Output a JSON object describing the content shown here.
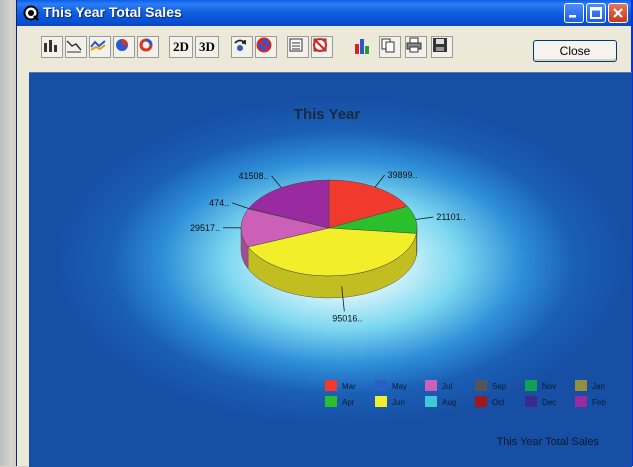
{
  "window": {
    "title": "This Year Total Sales",
    "close_label": "Close",
    "btn_2d": "2D",
    "btn_3d": "3D"
  },
  "toolbar_icons": [
    "bar-chart-icon",
    "line-chart-icon",
    "area-chart-icon",
    "pie-chart-icon",
    "donut-chart-icon",
    "2d-button",
    "3d-button",
    "rotate-icon",
    "no-labels-icon",
    "legend-icon",
    "remove-legend-icon",
    "color-bars-icon",
    "copy-icon",
    "print-icon",
    "save-icon"
  ],
  "chart_data": {
    "type": "pie",
    "title": "This Year",
    "footer": "This Year Total Sales",
    "slices": [
      {
        "label": "39899..",
        "series": "Mar",
        "value": 39899,
        "color": "#f03a2e"
      },
      {
        "label": "21101..",
        "series": "Apr",
        "value": 21101,
        "color": "#2bc02b"
      },
      {
        "label": "95016..",
        "series": "Jun",
        "value": 95016,
        "color": "#f2ee2a"
      },
      {
        "label": "29517..",
        "series": "Jul",
        "value": 29517,
        "color": "#cc5fb8"
      },
      {
        "label": "474..",
        "series": "Dec",
        "value": 474,
        "color": "#3a2a8a"
      },
      {
        "label": "41508..",
        "series": "Feb",
        "value": 41508,
        "color": "#9a2aa0"
      }
    ],
    "legend": [
      {
        "name": "Mar",
        "color": "#f03a2e"
      },
      {
        "name": "May",
        "color": "#2a5fc8"
      },
      {
        "name": "Jul",
        "color": "#cc5fb8"
      },
      {
        "name": "Sep",
        "color": "#555555"
      },
      {
        "name": "Nov",
        "color": "#10a050"
      },
      {
        "name": "Jan",
        "color": "#909040"
      },
      {
        "name": "Apr",
        "color": "#2bc02b"
      },
      {
        "name": "Jun",
        "color": "#f2ee2a"
      },
      {
        "name": "Aug",
        "color": "#40c8d8"
      },
      {
        "name": "Oct",
        "color": "#a01818"
      },
      {
        "name": "Dec",
        "color": "#3a2a8a"
      },
      {
        "name": "Feb",
        "color": "#9a2aa0"
      }
    ]
  }
}
